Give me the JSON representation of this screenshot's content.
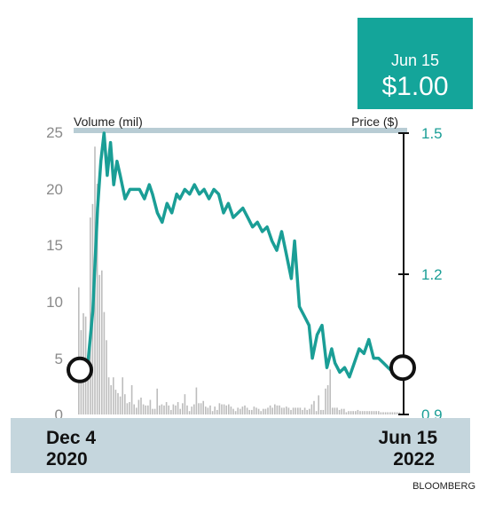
{
  "callout": {
    "date": "Jun 15",
    "price": "$1.00",
    "bg_color": "#14a59a"
  },
  "source": "BLOOMBERG",
  "chart_data": {
    "type": "line+bar",
    "title": "",
    "volume_axis_label": "Volume (mil)",
    "price_axis_label": "Price ($)",
    "volume_ticks": [
      "25",
      "20",
      "15",
      "10",
      "5",
      "0"
    ],
    "price_ticks": [
      "1.5",
      "1.2",
      "0.9"
    ],
    "volume_ylim": [
      0,
      25
    ],
    "price_ylim": [
      0.9,
      1.5
    ],
    "x_start_label": [
      "Dec 4",
      "2020"
    ],
    "x_end_label": [
      "Jun 15",
      "2022"
    ],
    "colors": {
      "price_line": "#1a9e96",
      "volume_bars": "#bdbdbd",
      "axis_band": "#b8ccd4",
      "bottom_band": "#c5d6dd"
    },
    "price_series": {
      "name": "Price ($)",
      "t": [
        0.0,
        0.01,
        0.025,
        0.04,
        0.055,
        0.065,
        0.075,
        0.085,
        0.095,
        0.105,
        0.115,
        0.125,
        0.14,
        0.155,
        0.17,
        0.185,
        0.2,
        0.215,
        0.225,
        0.24,
        0.255,
        0.27,
        0.285,
        0.3,
        0.31,
        0.325,
        0.34,
        0.355,
        0.37,
        0.385,
        0.4,
        0.415,
        0.43,
        0.445,
        0.46,
        0.475,
        0.49,
        0.505,
        0.52,
        0.535,
        0.55,
        0.565,
        0.58,
        0.595,
        0.61,
        0.625,
        0.64,
        0.655,
        0.665,
        0.68,
        0.695,
        0.71,
        0.72,
        0.735,
        0.75,
        0.765,
        0.78,
        0.79,
        0.805,
        0.82,
        0.835,
        0.85,
        0.865,
        0.88,
        0.895,
        0.91,
        0.925,
        0.94,
        0.955,
        0.97,
        0.985,
        1.0
      ],
      "values": [
        0.995,
        1.0,
        1.01,
        1.12,
        1.34,
        1.44,
        1.5,
        1.41,
        1.48,
        1.39,
        1.44,
        1.41,
        1.36,
        1.38,
        1.38,
        1.38,
        1.36,
        1.39,
        1.37,
        1.33,
        1.31,
        1.35,
        1.33,
        1.37,
        1.36,
        1.38,
        1.37,
        1.39,
        1.37,
        1.38,
        1.36,
        1.38,
        1.37,
        1.33,
        1.35,
        1.32,
        1.33,
        1.34,
        1.32,
        1.3,
        1.31,
        1.29,
        1.3,
        1.27,
        1.25,
        1.29,
        1.24,
        1.19,
        1.27,
        1.13,
        1.11,
        1.09,
        1.02,
        1.07,
        1.09,
        1.0,
        1.04,
        1.01,
        0.99,
        1.0,
        0.98,
        1.01,
        1.04,
        1.03,
        1.06,
        1.02,
        1.02,
        1.01,
        1.0,
        0.99,
        0.99,
        1.0
      ]
    },
    "volume_series": {
      "name": "Volume (mil)",
      "values": [
        11.3,
        7.5,
        9.0,
        8.7,
        4.2,
        17.5,
        18.7,
        23.8,
        20.5,
        12.4,
        12.8,
        9.1,
        6.6,
        3.3,
        2.6,
        3.3,
        2.2,
        1.9,
        1.6,
        3.3,
        1.8,
        1.0,
        1.1,
        2.6,
        0.9,
        0.6,
        1.3,
        1.5,
        0.9,
        0.8,
        0.8,
        1.3,
        0.5,
        0.5,
        2.3,
        0.8,
        0.9,
        0.8,
        1.1,
        0.8,
        0.4,
        0.9,
        0.8,
        1.1,
        0.5,
        1.0,
        1.8,
        0.8,
        0.3,
        0.7,
        0.9,
        2.4,
        1.0,
        1.0,
        1.2,
        0.7,
        0.6,
        0.8,
        0.3,
        0.7,
        0.4,
        1.0,
        0.9,
        0.9,
        0.8,
        0.9,
        0.7,
        0.5,
        0.3,
        0.6,
        0.5,
        0.7,
        0.8,
        0.6,
        0.4,
        0.4,
        0.7,
        0.6,
        0.5,
        0.3,
        0.5,
        0.5,
        0.6,
        0.8,
        0.6,
        0.9,
        0.8,
        0.8,
        0.6,
        0.6,
        0.7,
        0.6,
        0.4,
        0.6,
        0.6,
        0.6,
        0.6,
        0.4,
        0.6,
        0.4,
        0.5,
        0.9,
        1.2,
        0.3,
        1.7,
        0.4,
        0.4,
        2.3,
        2.6,
        4.0,
        0.6,
        0.6,
        0.6,
        0.4,
        0.5,
        0.5,
        0.2,
        0.3,
        0.3,
        0.3,
        0.3,
        0.4,
        0.3,
        0.3,
        0.3,
        0.3,
        0.3,
        0.3,
        0.3,
        0.3,
        0.3,
        0.2,
        0.2,
        0.2,
        0.2,
        0.2,
        0.2,
        0.2,
        0.2,
        0.2
      ]
    }
  }
}
